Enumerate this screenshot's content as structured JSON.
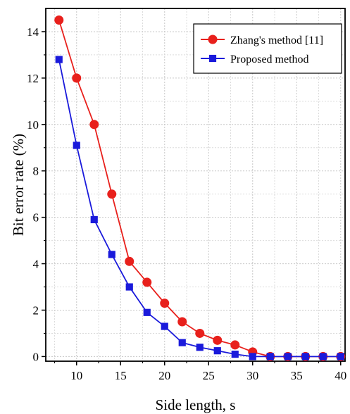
{
  "chart_data": {
    "type": "line",
    "title": "",
    "xlabel": "Side length, s",
    "ylabel": "Bit error rate (%)",
    "xlim": [
      6.5,
      40.5
    ],
    "ylim": [
      -0.2,
      15
    ],
    "xticks": [
      10,
      15,
      20,
      25,
      30,
      35,
      40
    ],
    "yticks": [
      0,
      2,
      4,
      6,
      8,
      10,
      12,
      14
    ],
    "grid": true,
    "legend_position": "top-right",
    "series": [
      {
        "name": "Zhang's method [11]",
        "color": "#e8201c",
        "marker": "circle",
        "x": [
          8,
          10,
          12,
          14,
          16,
          18,
          20,
          22,
          24,
          26,
          28,
          30,
          32,
          34,
          36,
          38,
          40
        ],
        "y": [
          14.5,
          12.0,
          10.0,
          7.0,
          4.1,
          3.2,
          2.3,
          1.5,
          1.0,
          0.7,
          0.5,
          0.2,
          0.0,
          0.0,
          0.0,
          0.0,
          0.0
        ]
      },
      {
        "name": "Proposed method",
        "color": "#1a1adb",
        "marker": "square",
        "x": [
          8,
          10,
          12,
          14,
          16,
          18,
          20,
          22,
          24,
          26,
          28,
          30,
          32,
          34,
          36,
          38,
          40
        ],
        "y": [
          12.8,
          9.1,
          5.9,
          4.4,
          3.0,
          1.9,
          1.3,
          0.6,
          0.4,
          0.25,
          0.1,
          0.0,
          0.0,
          0.0,
          0.0,
          0.0,
          0.0
        ]
      }
    ]
  }
}
